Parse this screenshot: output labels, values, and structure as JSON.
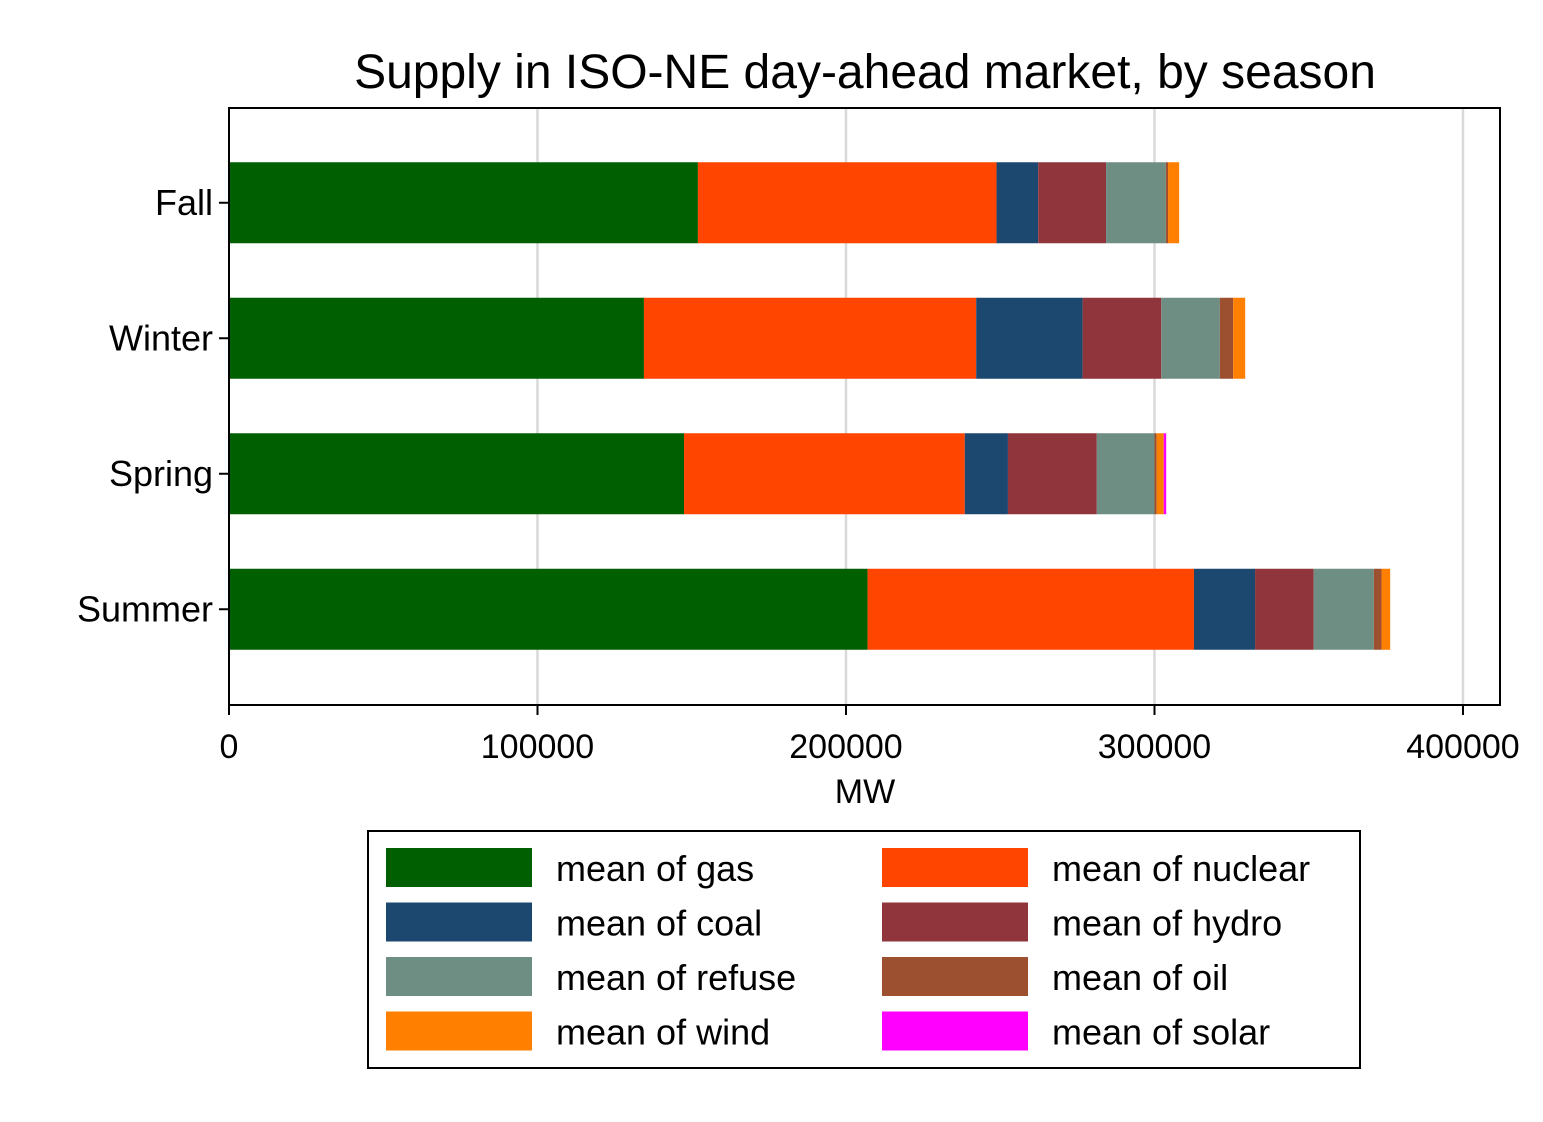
{
  "chart_data": {
    "type": "bar",
    "orientation": "horizontal",
    "stacked": true,
    "title": "Supply in ISO-NE day-ahead market, by season",
    "xlabel": "MW",
    "ylabel": "",
    "xlim": [
      0,
      412000
    ],
    "xticks": [
      0,
      100000,
      200000,
      300000,
      400000
    ],
    "xtick_labels": [
      "0",
      "100000",
      "200000",
      "300000",
      "400000"
    ],
    "grid": "vertical",
    "categories": [
      "Fall",
      "Winter",
      "Spring",
      "Summer"
    ],
    "series": [
      {
        "name": "mean of gas",
        "color": "#005F00",
        "values": [
          152000,
          134500,
          147500,
          207000
        ]
      },
      {
        "name": "mean of nuclear",
        "color": "#FF4500",
        "values": [
          96800,
          107700,
          91000,
          105800
        ]
      },
      {
        "name": "mean of coal",
        "color": "#1C4870",
        "values": [
          13500,
          34500,
          14000,
          19800
        ]
      },
      {
        "name": "mean of hydro",
        "color": "#90353B",
        "values": [
          22000,
          25500,
          28800,
          19000
        ]
      },
      {
        "name": "mean of refuse",
        "color": "#6E8E84",
        "values": [
          19400,
          19000,
          18700,
          19500
        ]
      },
      {
        "name": "mean of oil",
        "color": "#9C5030",
        "values": [
          700,
          4300,
          700,
          2500
        ]
      },
      {
        "name": "mean of wind",
        "color": "#FF7F00",
        "values": [
          3600,
          3900,
          2300,
          2800
        ]
      },
      {
        "name": "mean of solar",
        "color": "#FF00FF",
        "values": [
          0,
          0,
          800,
          0
        ]
      }
    ],
    "legend": {
      "position": "bottom",
      "columns": 2
    }
  }
}
